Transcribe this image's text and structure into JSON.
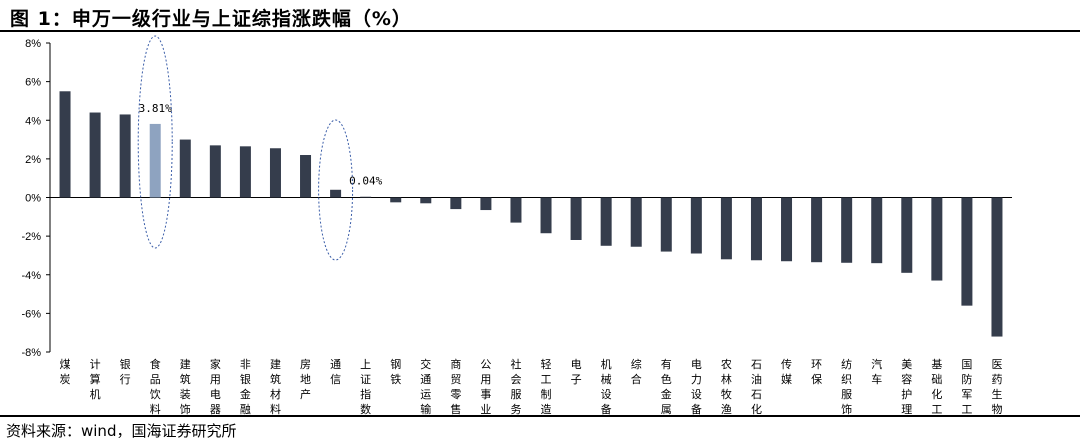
{
  "title": "图 1：申万一级行业与上证综指涨跌幅（%）",
  "source": "资料来源：wind，国海证券研究所",
  "colors": {
    "bar": "#353d4c",
    "highlight": "#8ea3c0",
    "ellipse": "#3a5da8"
  },
  "chart_data": {
    "type": "bar",
    "title": "",
    "xlabel": "",
    "ylabel": "",
    "ylim": [
      -8,
      8
    ],
    "yticks": [
      "8%",
      "6%",
      "4%",
      "2%",
      "0%",
      "-2%",
      "-4%",
      "-6%",
      "-8%"
    ],
    "grid": false,
    "highlight_indices": [
      3,
      9
    ],
    "categories": [
      "煤炭",
      "计算机",
      "银行",
      "食品饮料",
      "建筑装饰",
      "家用电器",
      "非银金融",
      "建筑材料",
      "房地产",
      "通信",
      "上证指数",
      "钢铁",
      "交通运输",
      "商贸零售",
      "公用事业",
      "社会服务",
      "轻工制造",
      "电子",
      "机械设备",
      "综合",
      "有色金属",
      "电力设备",
      "农林牧渔",
      "石油石化",
      "传媒",
      "环保",
      "纺织服饰",
      "汽车",
      "美容护理",
      "基础化工",
      "国防军工",
      "医药生物"
    ],
    "values": [
      5.5,
      4.4,
      4.3,
      3.81,
      3.0,
      2.7,
      2.65,
      2.55,
      2.2,
      0.4,
      0.04,
      -0.25,
      -0.3,
      -0.6,
      -0.65,
      -1.3,
      -1.85,
      -2.2,
      -2.5,
      -2.55,
      -2.8,
      -2.9,
      -3.2,
      -3.25,
      -3.3,
      -3.35,
      -3.38,
      -3.4,
      -3.9,
      -4.3,
      -5.6,
      -7.2
    ],
    "data_labels": [
      {
        "index": 3,
        "text": "3.81%"
      },
      {
        "index": 10,
        "text": "0.04%"
      }
    ]
  }
}
